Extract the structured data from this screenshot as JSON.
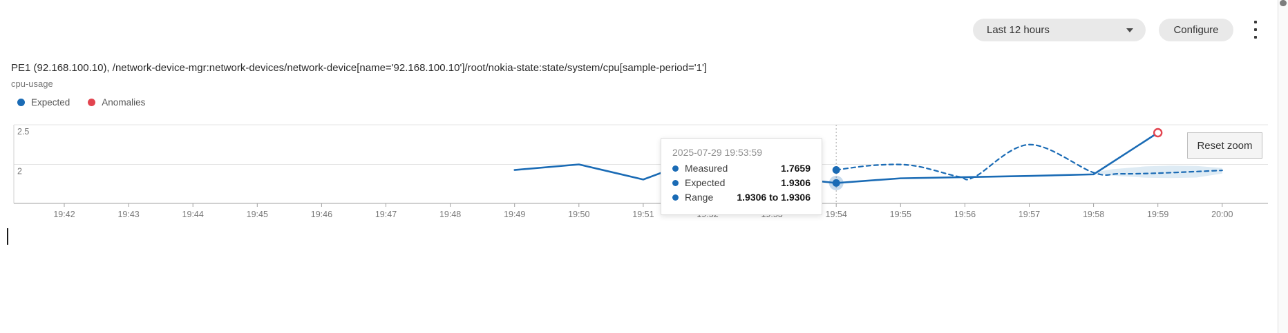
{
  "header": {
    "time_range": {
      "value": "Last 12 hours"
    },
    "configure_label": "Configure"
  },
  "chart_header": {
    "title": "PE1 (92.168.100.10), /network-device-mgr:network-devices/network-device[name='92.168.100.10']/root/nokia-state:state/system/cpu[sample-period='1']",
    "subtitle": "cpu-usage"
  },
  "legend": {
    "items": [
      {
        "label": "Expected",
        "color": "#1a6bb5"
      },
      {
        "label": "Anomalies",
        "color": "#e2444f"
      }
    ]
  },
  "tooltip": {
    "timestamp": "2025-07-29 19:53:59",
    "rows": [
      {
        "label": "Measured",
        "value": "1.7659"
      },
      {
        "label": "Expected",
        "value": "1.9306"
      },
      {
        "label": "Range",
        "value": "1.9306 to 1.9306"
      }
    ]
  },
  "reset_zoom_label": "Reset zoom",
  "colors": {
    "series_blue": "#1a6bb5",
    "anomaly_red": "#e2444f",
    "band_fill": "rgba(31,119,180,0.15)",
    "gridline": "#e4e4e4",
    "axis": "#a0a0a0",
    "tick_text": "#777777"
  },
  "chart_data": {
    "type": "line",
    "title": "cpu-usage",
    "x_unit": "minutes after 19:42",
    "x_axis": {
      "tick_labels": [
        "19:42",
        "19:43",
        "19:44",
        "19:45",
        "19:46",
        "19:47",
        "19:48",
        "19:49",
        "19:50",
        "19:51",
        "19:52",
        "19:53",
        "19:54",
        "19:55",
        "19:56",
        "19:57",
        "19:58",
        "19:59",
        "20:00"
      ]
    },
    "y_axis": {
      "tick_labels": [
        "2.5",
        "2"
      ],
      "tick_values": [
        2.5,
        2
      ],
      "ylim": [
        1.51,
        2.51
      ],
      "grid": true
    },
    "series": [
      {
        "name": "Measured",
        "style": "solid",
        "color": "#1a6bb5",
        "points": [
          [
            7,
            1.93
          ],
          [
            8,
            2.0
          ],
          [
            9,
            1.81
          ],
          [
            9.3,
            1.9
          ],
          [
            10,
            1.93
          ],
          [
            11,
            1.85
          ],
          [
            12,
            1.7659
          ],
          [
            13,
            1.825
          ],
          [
            14,
            1.84
          ],
          [
            15,
            1.855
          ],
          [
            16,
            1.875
          ],
          [
            17,
            2.4
          ]
        ]
      },
      {
        "name": "Expected",
        "style": "dashed",
        "color": "#1a6bb5",
        "points": [
          [
            12,
            1.9306
          ],
          [
            12.6,
            1.99
          ],
          [
            13.2,
            1.985
          ],
          [
            13.9,
            1.846
          ],
          [
            14.15,
            1.843
          ],
          [
            15,
            2.25
          ],
          [
            16,
            1.897
          ],
          [
            16.4,
            1.882
          ],
          [
            17,
            1.89
          ],
          [
            18,
            1.925
          ]
        ]
      }
    ],
    "band": {
      "name": "Expected range",
      "color": "rgba(31,119,180,0.15)",
      "upper": [
        [
          16,
          1.9
        ],
        [
          16.3,
          1.94
        ],
        [
          16.8,
          1.975
        ],
        [
          17.2,
          1.985
        ],
        [
          17.6,
          1.98
        ],
        [
          18,
          1.955
        ]
      ],
      "lower": [
        [
          16,
          1.9
        ],
        [
          16.3,
          1.858
        ],
        [
          16.8,
          1.833
        ],
        [
          17.2,
          1.828
        ],
        [
          17.6,
          1.835
        ],
        [
          18,
          1.885
        ]
      ]
    },
    "selected_point": {
      "x": 12,
      "time": "2025-07-29 19:53:59",
      "measured": 1.7659,
      "expected": 1.9306,
      "range": "1.9306 to 1.9306"
    },
    "anomaly_points": [
      {
        "x": 17,
        "value": 2.4,
        "time": "19:59"
      }
    ],
    "legend_position": "top-left"
  }
}
